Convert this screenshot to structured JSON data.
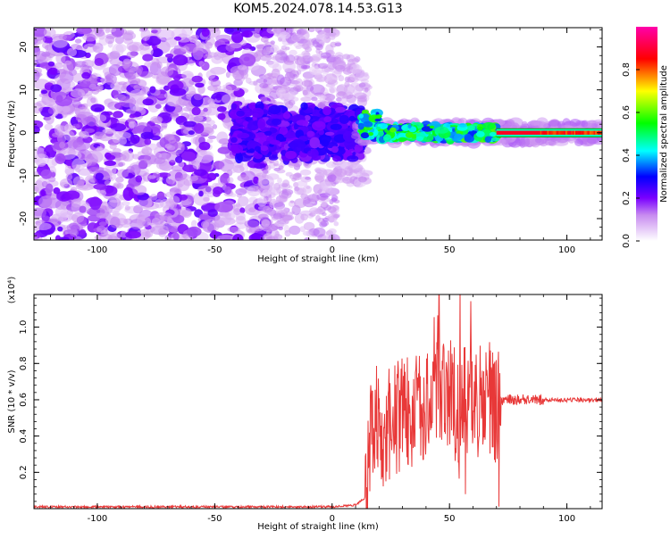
{
  "title": "KOM5.2024.078.14.53.G13",
  "chart_data": [
    {
      "type": "heatmap",
      "xlabel": "Height of straight line (km)",
      "ylabel": "Frequency (Hz)",
      "xlim": [
        -127,
        115
      ],
      "ylim": [
        -25,
        24.5
      ],
      "xticks": [
        -100,
        -50,
        0,
        50,
        100
      ],
      "yticks": [
        -20,
        -10,
        0,
        10,
        20
      ],
      "colorbar": {
        "label": "Normalized spectral amplitude",
        "range": [
          0.0,
          1.0
        ],
        "ticks": [
          "0.0",
          "0.2",
          "0.4",
          "0.6",
          "0.8"
        ],
        "stops": [
          {
            "v": 0.0,
            "color": "#ffffff"
          },
          {
            "v": 0.12,
            "color": "#c88cf0"
          },
          {
            "v": 0.2,
            "color": "#7a00ff"
          },
          {
            "v": 0.3,
            "color": "#0000ff"
          },
          {
            "v": 0.42,
            "color": "#00ffff"
          },
          {
            "v": 0.55,
            "color": "#00ff00"
          },
          {
            "v": 0.7,
            "color": "#ffff00"
          },
          {
            "v": 0.85,
            "color": "#ff0000"
          },
          {
            "v": 1.0,
            "color": "#ff00aa"
          }
        ]
      }
    },
    {
      "type": "line",
      "xlabel": "Height of straight line (km)",
      "ylabel": "SNR (10 * v/v)",
      "scale_label": "(x10⁴)",
      "xlim": [
        -127,
        115
      ],
      "ylim": [
        0,
        1.18
      ],
      "xticks": [
        -100,
        -50,
        0,
        50,
        100
      ],
      "yticks": [
        "0.2",
        "0.4",
        "0.6",
        "0.8",
        "1.0"
      ],
      "line_color": "#e83838",
      "series": [
        {
          "x": [
            -127,
            -100,
            -50,
            0,
            10,
            14,
            16,
            18,
            20,
            25,
            30,
            35,
            40,
            44,
            45,
            50,
            55,
            60,
            65,
            70,
            72,
            80,
            90,
            100,
            115
          ],
          "values": [
            0.01,
            0.01,
            0.01,
            0.01,
            0.02,
            0.06,
            0.35,
            0.4,
            0.42,
            0.47,
            0.52,
            0.54,
            0.56,
            0.62,
            0.62,
            0.6,
            0.56,
            0.6,
            0.57,
            0.55,
            0.6,
            0.6,
            0.6,
            0.6,
            0.6
          ]
        }
      ]
    }
  ]
}
